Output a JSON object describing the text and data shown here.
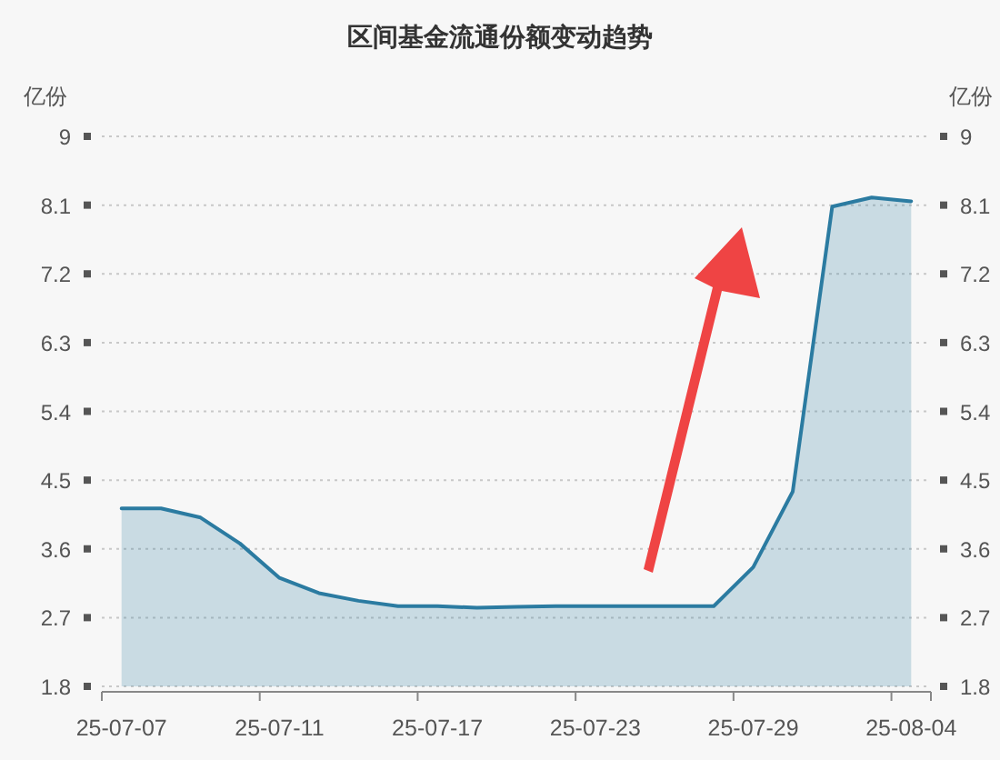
{
  "chart_data": {
    "type": "area",
    "title": "区间基金流通份额变动趋势",
    "ylabel": "亿份",
    "y2label": "亿份",
    "categories": [
      "25-07-07",
      null,
      null,
      null,
      "25-07-11",
      null,
      null,
      null,
      "25-07-17",
      null,
      null,
      null,
      "25-07-23",
      null,
      null,
      null,
      "25-07-29",
      null,
      null,
      null,
      "25-08-04"
    ],
    "series": [
      {
        "color": "#2b7ba1",
        "values": [
          4.13,
          4.13,
          4.01,
          3.67,
          3.22,
          3.02,
          2.92,
          2.85,
          2.85,
          2.83,
          2.84,
          2.85,
          2.85,
          2.85,
          2.85,
          2.85,
          3.36,
          4.35,
          8.08,
          8.2,
          8.15
        ]
      }
    ],
    "ylim": [
      1.8,
      9
    ],
    "yticks": [
      1.8,
      2.7,
      3.6,
      4.5,
      5.4,
      6.3,
      7.2,
      8.1,
      9
    ],
    "y2lim": [
      1.8,
      9
    ],
    "y2ticks": [
      1.8,
      2.7,
      3.6,
      4.5,
      5.4,
      6.3,
      7.2,
      8.1,
      9
    ],
    "grid": "y"
  }
}
